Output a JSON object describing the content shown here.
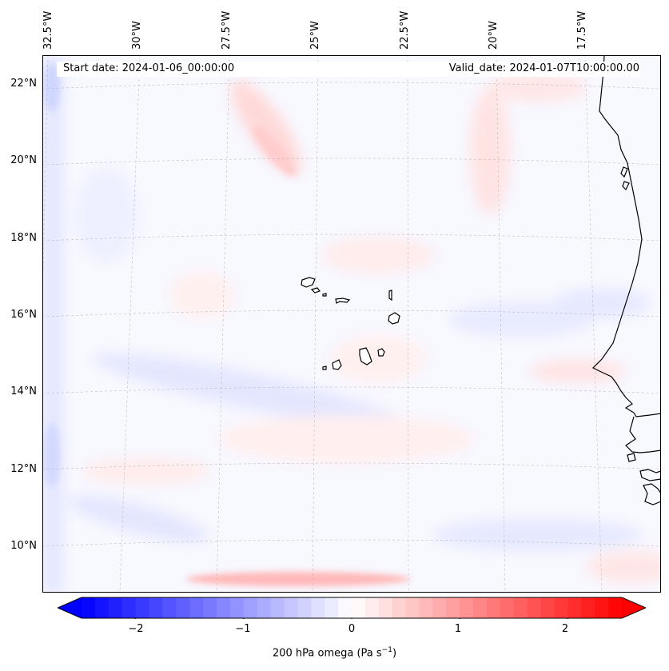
{
  "map": {
    "start_date": "Start date: 2024-01-06_00:00:00",
    "valid_date": "Valid_date: 2024-01-07T10:00:00.00",
    "lon_labels": [
      "32.5°W",
      "30°W",
      "27.5°W",
      "25°W",
      "22.5°W",
      "20°W",
      "17.5°W"
    ],
    "lat_labels": [
      "22°N",
      "20°N",
      "18°N",
      "16°N",
      "14°N",
      "12°N",
      "10°N"
    ],
    "coastline_color": "#000000",
    "gridline_color": "#b0b0b0"
  },
  "colorbar": {
    "ticks": [
      "−2",
      "−1",
      "0",
      "1",
      "2"
    ],
    "tick_values": [
      -2,
      -1,
      0,
      1,
      2
    ],
    "range": [
      -2.5,
      2.5
    ],
    "extend": "both",
    "colormap": "bwr",
    "low_color": "#0000ff",
    "mid_color": "#ffffff",
    "high_color": "#ff0000",
    "label_main": "200 hPa omega (Pa s",
    "label_sup": "−1",
    "label_end": ")"
  }
}
